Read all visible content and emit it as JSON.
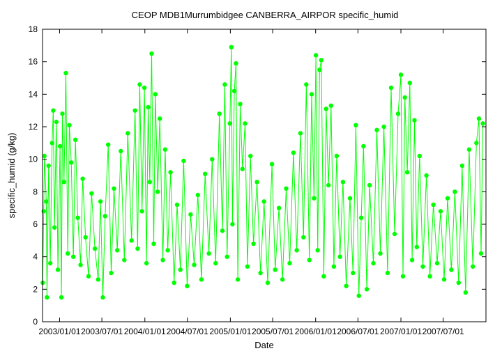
{
  "chart_data": {
    "type": "scatter",
    "title": "CEOP MDB1Murrumbidgee CANBERRA_AIRPOR  specific_humid",
    "xlabel": "Date",
    "ylabel": "specific_humid (g/kg)",
    "ylim": [
      0,
      18
    ],
    "xlim": [
      "2002-10-20",
      "2007-12-31"
    ],
    "y_ticks": [
      0,
      2,
      4,
      6,
      8,
      10,
      12,
      14,
      16,
      18
    ],
    "x_ticks": [
      "2003/01/01",
      "2003/07/01",
      "2004/01/01",
      "2004/07/01",
      "2005/01/01",
      "2005/07/01",
      "2006/01/01",
      "2006/07/01",
      "2007/01/01",
      "2007/07/01"
    ],
    "grid": false,
    "legend": "none",
    "marker": "filled-circle",
    "color": "#00ff00",
    "series": [
      {
        "points": [
          [
            "2002-10-21",
            2.4
          ],
          [
            "2002-10-25",
            6.8
          ],
          [
            "2002-10-28",
            10.2
          ],
          [
            "2002-11-05",
            7.4
          ],
          [
            "2002-11-08",
            1.5
          ],
          [
            "2002-11-15",
            9.6
          ],
          [
            "2002-11-22",
            3.6
          ],
          [
            "2002-11-30",
            11.0
          ],
          [
            "2002-12-05",
            13.0
          ],
          [
            "2002-12-10",
            5.8
          ],
          [
            "2002-12-18",
            12.3
          ],
          [
            "2002-12-25",
            3.2
          ],
          [
            "2003-01-03",
            10.8
          ],
          [
            "2003-01-09",
            1.5
          ],
          [
            "2003-01-13",
            12.8
          ],
          [
            "2003-01-20",
            8.6
          ],
          [
            "2003-01-28",
            15.3
          ],
          [
            "2003-02-05",
            4.2
          ],
          [
            "2003-02-12",
            12.1
          ],
          [
            "2003-02-20",
            9.8
          ],
          [
            "2003-03-01",
            4.0
          ],
          [
            "2003-03-10",
            11.2
          ],
          [
            "2003-03-20",
            6.4
          ],
          [
            "2003-04-01",
            3.5
          ],
          [
            "2003-04-10",
            8.8
          ],
          [
            "2003-04-22",
            5.2
          ],
          [
            "2003-05-05",
            2.8
          ],
          [
            "2003-05-18",
            7.9
          ],
          [
            "2003-06-01",
            4.5
          ],
          [
            "2003-06-15",
            2.6
          ],
          [
            "2003-06-25",
            7.4
          ],
          [
            "2003-07-05",
            1.5
          ],
          [
            "2003-07-15",
            6.5
          ],
          [
            "2003-07-28",
            10.9
          ],
          [
            "2003-08-10",
            3.0
          ],
          [
            "2003-08-22",
            8.2
          ],
          [
            "2003-09-05",
            4.4
          ],
          [
            "2003-09-20",
            10.5
          ],
          [
            "2003-10-05",
            3.8
          ],
          [
            "2003-10-20",
            11.6
          ],
          [
            "2003-11-05",
            5.0
          ],
          [
            "2003-11-20",
            13.0
          ],
          [
            "2003-12-01",
            4.5
          ],
          [
            "2003-12-10",
            14.6
          ],
          [
            "2003-12-20",
            6.8
          ],
          [
            "2003-12-30",
            14.4
          ],
          [
            "2004-01-08",
            3.6
          ],
          [
            "2004-01-15",
            13.2
          ],
          [
            "2004-01-22",
            8.6
          ],
          [
            "2004-01-30",
            16.5
          ],
          [
            "2004-02-08",
            4.8
          ],
          [
            "2004-02-15",
            14.0
          ],
          [
            "2004-02-25",
            8.0
          ],
          [
            "2004-03-05",
            12.5
          ],
          [
            "2004-03-18",
            3.8
          ],
          [
            "2004-03-28",
            10.6
          ],
          [
            "2004-04-08",
            4.4
          ],
          [
            "2004-04-20",
            9.2
          ],
          [
            "2004-05-05",
            2.4
          ],
          [
            "2004-05-18",
            7.2
          ],
          [
            "2004-06-01",
            3.2
          ],
          [
            "2004-06-15",
            9.9
          ],
          [
            "2004-06-30",
            2.2
          ],
          [
            "2004-07-15",
            6.6
          ],
          [
            "2004-07-30",
            3.5
          ],
          [
            "2004-08-15",
            7.8
          ],
          [
            "2004-08-30",
            2.6
          ],
          [
            "2004-09-15",
            9.1
          ],
          [
            "2004-10-01",
            4.2
          ],
          [
            "2004-10-15",
            10.0
          ],
          [
            "2004-10-30",
            3.6
          ],
          [
            "2004-11-15",
            12.8
          ],
          [
            "2004-11-28",
            5.6
          ],
          [
            "2004-12-08",
            14.6
          ],
          [
            "2004-12-18",
            4.0
          ],
          [
            "2004-12-30",
            12.2
          ],
          [
            "2005-01-05",
            16.9
          ],
          [
            "2005-01-10",
            6.0
          ],
          [
            "2005-01-18",
            14.2
          ],
          [
            "2005-01-25",
            15.9
          ],
          [
            "2005-02-02",
            2.6
          ],
          [
            "2005-02-12",
            13.4
          ],
          [
            "2005-02-22",
            9.4
          ],
          [
            "2005-03-05",
            12.2
          ],
          [
            "2005-03-15",
            3.4
          ],
          [
            "2005-03-28",
            10.2
          ],
          [
            "2005-04-10",
            4.8
          ],
          [
            "2005-04-25",
            8.6
          ],
          [
            "2005-05-10",
            3.0
          ],
          [
            "2005-05-25",
            7.4
          ],
          [
            "2005-06-10",
            2.4
          ],
          [
            "2005-06-28",
            9.7
          ],
          [
            "2005-07-12",
            3.2
          ],
          [
            "2005-07-28",
            7.0
          ],
          [
            "2005-08-12",
            2.6
          ],
          [
            "2005-08-28",
            8.2
          ],
          [
            "2005-09-12",
            3.6
          ],
          [
            "2005-09-28",
            10.4
          ],
          [
            "2005-10-12",
            4.4
          ],
          [
            "2005-10-28",
            11.6
          ],
          [
            "2005-11-10",
            5.2
          ],
          [
            "2005-11-22",
            14.6
          ],
          [
            "2005-12-05",
            3.8
          ],
          [
            "2005-12-15",
            14.0
          ],
          [
            "2005-12-25",
            7.6
          ],
          [
            "2006-01-02",
            16.4
          ],
          [
            "2006-01-10",
            4.4
          ],
          [
            "2006-01-18",
            15.5
          ],
          [
            "2006-01-25",
            16.1
          ],
          [
            "2006-02-05",
            2.8
          ],
          [
            "2006-02-15",
            13.1
          ],
          [
            "2006-02-25",
            8.4
          ],
          [
            "2006-03-08",
            13.3
          ],
          [
            "2006-03-20",
            3.4
          ],
          [
            "2006-04-01",
            10.2
          ],
          [
            "2006-04-15",
            4.0
          ],
          [
            "2006-04-28",
            8.6
          ],
          [
            "2006-05-12",
            2.2
          ],
          [
            "2006-05-28",
            7.6
          ],
          [
            "2006-06-10",
            3.0
          ],
          [
            "2006-06-22",
            12.1
          ],
          [
            "2006-07-05",
            1.6
          ],
          [
            "2006-07-15",
            6.4
          ],
          [
            "2006-07-25",
            10.8
          ],
          [
            "2006-08-08",
            2.0
          ],
          [
            "2006-08-20",
            8.4
          ],
          [
            "2006-09-05",
            3.6
          ],
          [
            "2006-09-20",
            11.8
          ],
          [
            "2006-10-05",
            4.2
          ],
          [
            "2006-10-20",
            12.0
          ],
          [
            "2006-11-05",
            3.0
          ],
          [
            "2006-11-20",
            14.4
          ],
          [
            "2006-12-05",
            5.4
          ],
          [
            "2006-12-20",
            12.8
          ],
          [
            "2007-01-01",
            15.2
          ],
          [
            "2007-01-10",
            2.8
          ],
          [
            "2007-01-18",
            13.8
          ],
          [
            "2007-01-28",
            9.2
          ],
          [
            "2007-02-08",
            14.7
          ],
          [
            "2007-02-18",
            3.8
          ],
          [
            "2007-02-28",
            12.4
          ],
          [
            "2007-03-10",
            4.6
          ],
          [
            "2007-03-22",
            10.2
          ],
          [
            "2007-04-05",
            3.4
          ],
          [
            "2007-04-20",
            9.0
          ],
          [
            "2007-05-05",
            2.8
          ],
          [
            "2007-05-20",
            7.2
          ],
          [
            "2007-06-05",
            3.6
          ],
          [
            "2007-06-20",
            6.8
          ],
          [
            "2007-07-05",
            2.6
          ],
          [
            "2007-07-20",
            7.6
          ],
          [
            "2007-08-05",
            3.2
          ],
          [
            "2007-08-20",
            8.0
          ],
          [
            "2007-09-05",
            2.4
          ],
          [
            "2007-09-20",
            9.6
          ],
          [
            "2007-10-05",
            1.8
          ],
          [
            "2007-10-20",
            10.6
          ],
          [
            "2007-11-05",
            3.4
          ],
          [
            "2007-11-20",
            11.0
          ],
          [
            "2007-12-01",
            12.5
          ],
          [
            "2007-12-10",
            4.2
          ],
          [
            "2007-12-18",
            12.2
          ]
        ]
      }
    ]
  }
}
